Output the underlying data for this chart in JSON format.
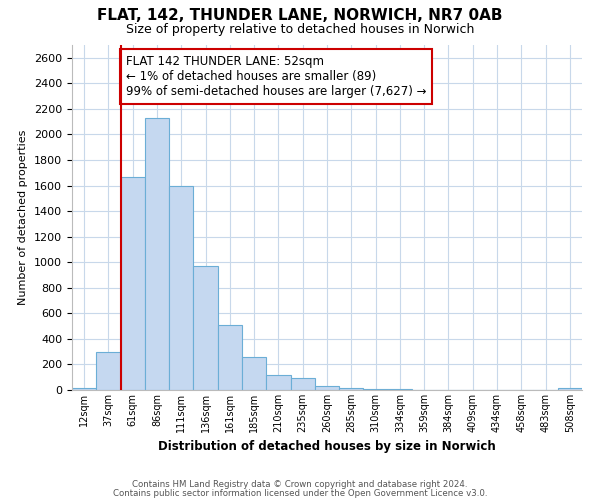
{
  "title": "FLAT, 142, THUNDER LANE, NORWICH, NR7 0AB",
  "subtitle": "Size of property relative to detached houses in Norwich",
  "xlabel": "Distribution of detached houses by size in Norwich",
  "ylabel": "Number of detached properties",
  "bin_labels": [
    "12sqm",
    "37sqm",
    "61sqm",
    "86sqm",
    "111sqm",
    "136sqm",
    "161sqm",
    "185sqm",
    "210sqm",
    "235sqm",
    "260sqm",
    "285sqm",
    "310sqm",
    "334sqm",
    "359sqm",
    "384sqm",
    "409sqm",
    "434sqm",
    "458sqm",
    "483sqm",
    "508sqm"
  ],
  "bar_heights": [
    15,
    300,
    1670,
    2130,
    1600,
    970,
    510,
    255,
    120,
    95,
    30,
    15,
    5,
    5,
    3,
    2,
    2,
    1,
    1,
    1,
    15
  ],
  "bar_color": "#c5d8f0",
  "bar_edge_color": "#6baed6",
  "vline_x_index": 2,
  "vline_color": "#cc0000",
  "annotation_line1": "FLAT 142 THUNDER LANE: 52sqm",
  "annotation_line2": "← 1% of detached houses are smaller (89)",
  "annotation_line3": "99% of semi-detached houses are larger (7,627) →",
  "annotation_box_color": "#ffffff",
  "annotation_box_edge": "#cc0000",
  "ylim": [
    0,
    2700
  ],
  "yticks": [
    0,
    200,
    400,
    600,
    800,
    1000,
    1200,
    1400,
    1600,
    1800,
    2000,
    2200,
    2400,
    2600
  ],
  "footer1": "Contains HM Land Registry data © Crown copyright and database right 2024.",
  "footer2": "Contains public sector information licensed under the Open Government Licence v3.0.",
  "bg_color": "#ffffff",
  "grid_color": "#c8d8ea"
}
